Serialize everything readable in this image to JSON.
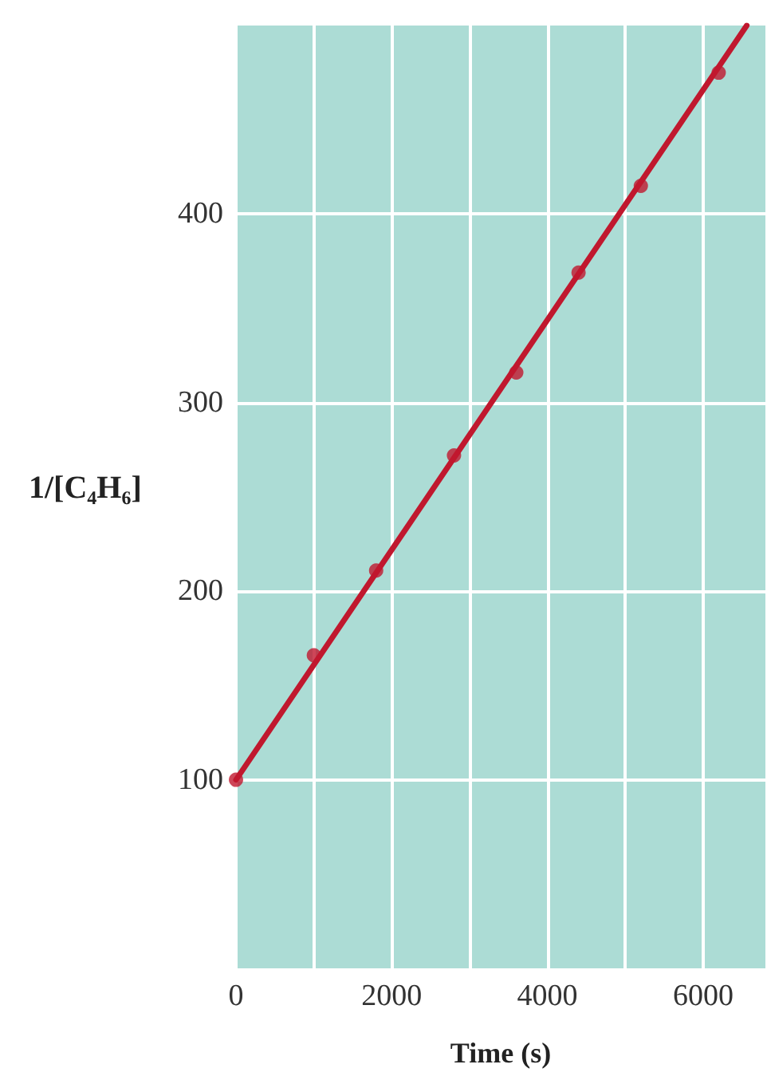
{
  "chart_data": {
    "type": "scatter",
    "xlabel": "Time (s)",
    "ylabel": "1/[C₄H₆]",
    "xlim": [
      0,
      6800
    ],
    "ylim": [
      0,
      500
    ],
    "xticks": [
      0,
      {
        "value": 1000,
        "label": null
      },
      2000,
      {
        "value": 3000,
        "label": null
      },
      4000,
      {
        "value": 5000,
        "label": null
      },
      6000
    ],
    "yticks": [
      100,
      200,
      300,
      400
    ],
    "grid": true,
    "marker": "circle",
    "series": [
      {
        "color": "#c0182e",
        "x": [
          0,
          1000,
          1800,
          2800,
          3600,
          4400,
          5200,
          6200
        ],
        "values": [
          100,
          166,
          211,
          272,
          316,
          369,
          415,
          475
        ]
      },
      {
        "type": "line",
        "color": "#c0182e",
        "line_style": "solid",
        "marker": "none",
        "x": [
          0,
          6560
        ],
        "values": [
          100,
          500
        ]
      }
    ]
  }
}
